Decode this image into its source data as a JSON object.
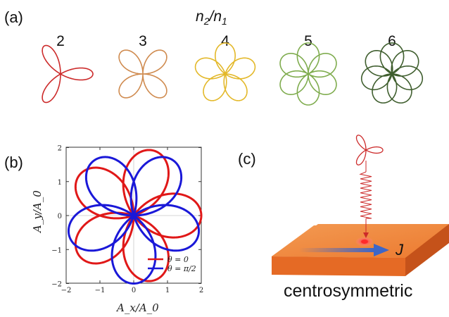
{
  "panels": {
    "a": {
      "label": "(a)",
      "title_main": "n",
      "title_sub1": "2",
      "title_slash": "/",
      "title_main2": "n",
      "title_sub2": "1",
      "ratios": [
        {
          "label": "2",
          "value": 2,
          "color": "#cc2a2a"
        },
        {
          "label": "3",
          "value": 3,
          "color": "#cf8a4e"
        },
        {
          "label": "4",
          "value": 4,
          "color": "#e3b829"
        },
        {
          "label": "5",
          "value": 5,
          "color": "#7fac4e"
        },
        {
          "label": "6",
          "value": 6,
          "color": "#3f5e2e"
        }
      ]
    },
    "b": {
      "label": "(b)",
      "xlabel": "A_x/A_0",
      "ylabel": "A_y/A_0",
      "xticks": [
        "−2",
        "−1",
        "0",
        "1",
        "2"
      ],
      "yticks": [
        "2",
        "1",
        "0",
        "−1",
        "−2"
      ],
      "legend": [
        {
          "label": "θ = 0",
          "color": "#e01818"
        },
        {
          "label": "θ = π/2",
          "color": "#1a18d8"
        }
      ]
    },
    "c": {
      "label": "(c)",
      "current_label": "J",
      "material_label": "centrosymmetric",
      "colors": {
        "slab_top": "#f08a3e",
        "slab_front": "#e46a22",
        "arrow": "#3d66c8",
        "beam": "#cc2a2a"
      }
    }
  }
}
